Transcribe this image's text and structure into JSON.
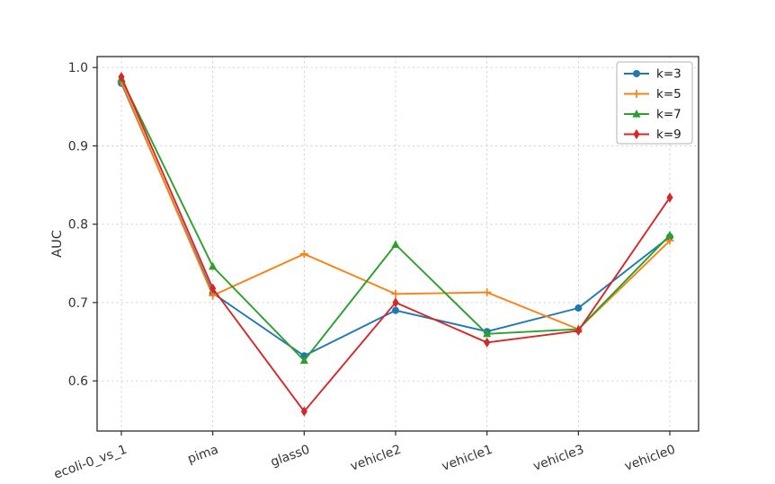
{
  "figure": {
    "background_color": "#ffffff",
    "spine_color": "#2b2b2b",
    "grid_color": "#c9c9c9",
    "tick_label_color": "#333333"
  },
  "chart_data": {
    "type": "line",
    "title": "",
    "xlabel": "",
    "ylabel": "AUC",
    "categories": [
      "ecoli-0_vs_1",
      "pima",
      "glass0",
      "vehicle2",
      "vehicle1",
      "vehicle3",
      "vehicle0"
    ],
    "series": [
      {
        "name": "k=3",
        "color": "#1f77b4",
        "marker": "circle",
        "values": [
          0.98,
          0.712,
          0.632,
          0.69,
          0.663,
          0.693,
          0.784
        ]
      },
      {
        "name": "k=5",
        "color": "#ff7f0e",
        "marker": "plus",
        "values": [
          0.982,
          0.709,
          0.762,
          0.711,
          0.713,
          0.666,
          0.779
        ]
      },
      {
        "name": "k=7",
        "color": "#2ca02c",
        "marker": "triangle",
        "values": [
          0.986,
          0.746,
          0.626,
          0.774,
          0.66,
          0.666,
          0.786
        ]
      },
      {
        "name": "k=9",
        "color": "#d62728",
        "marker": "diamond",
        "values": [
          0.988,
          0.718,
          0.561,
          0.7,
          0.649,
          0.664,
          0.834
        ]
      }
    ],
    "yticks": [
      0.6,
      0.7,
      0.8,
      0.9,
      1.0
    ],
    "ylim": [
      0.536,
      1.014
    ],
    "grid": true,
    "grid_style": "dashed",
    "legend_position": "upper right",
    "legend_labels": [
      "k=3",
      "k=5",
      "k=7",
      "k=9"
    ]
  }
}
